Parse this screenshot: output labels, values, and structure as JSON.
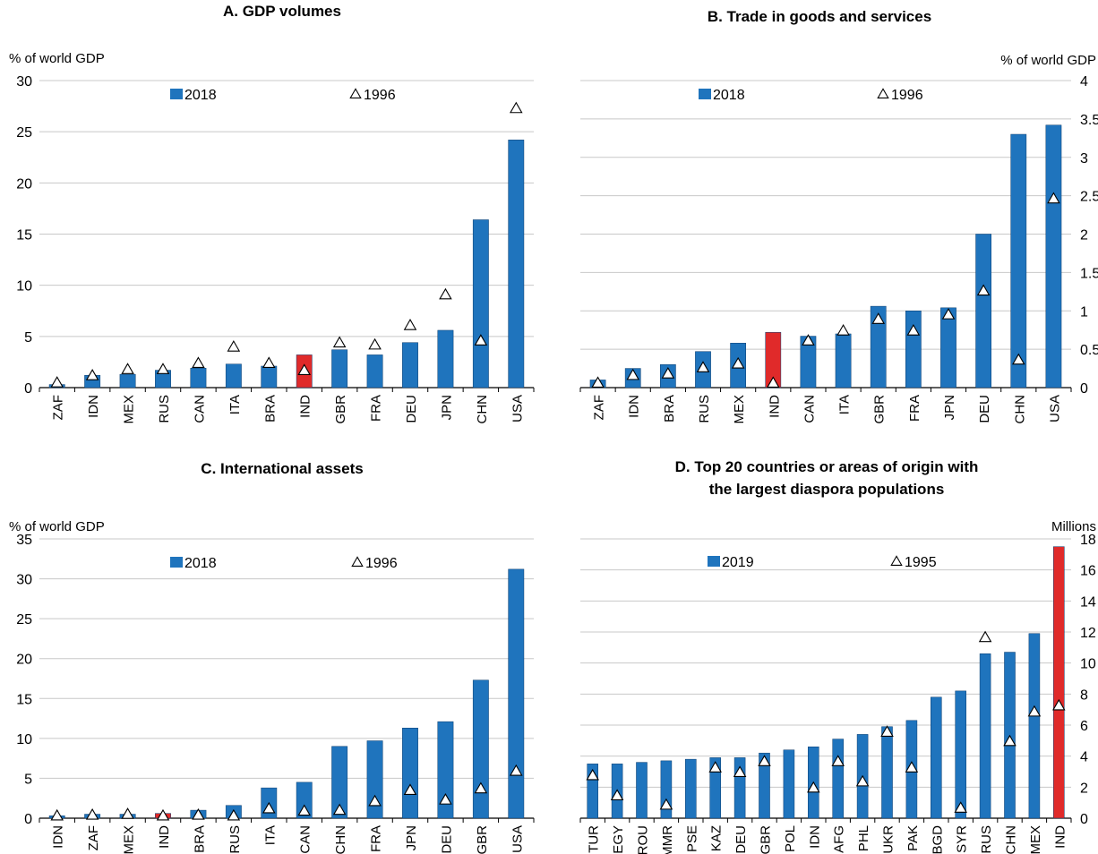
{
  "legend_colors": {
    "bar": "#1f74bd",
    "highlight": "#e02a2a",
    "marker_stroke": "#000000",
    "marker_fill": "#ffffff"
  },
  "chart_data": [
    {
      "id": "A",
      "type": "bar",
      "title": "A. GDP volumes",
      "ylabel": "% of world GDP",
      "yaxis_side": "left",
      "ylim": [
        0,
        30
      ],
      "yticks": [
        "0",
        "5",
        "10",
        "15",
        "20",
        "25",
        "30"
      ],
      "legend": {
        "bar_label": "2018",
        "marker_label": "1996"
      },
      "categories": [
        "ZAF",
        "IDN",
        "MEX",
        "RUS",
        "CAN",
        "ITA",
        "BRA",
        "IND",
        "GBR",
        "FRA",
        "DEU",
        "JPN",
        "CHN",
        "USA"
      ],
      "highlight": [
        "IND"
      ],
      "series": [
        {
          "name": "2018",
          "values": [
            0.3,
            1.2,
            1.3,
            1.7,
            1.9,
            2.3,
            2.1,
            3.2,
            3.7,
            3.2,
            4.4,
            5.6,
            16.4,
            24.2
          ]
        },
        {
          "name": "1996",
          "values": [
            0.4,
            1.1,
            1.7,
            1.7,
            2.3,
            3.9,
            2.3,
            1.6,
            4.3,
            4.1,
            6.0,
            9.0,
            4.5,
            27.2
          ]
        }
      ]
    },
    {
      "id": "B",
      "type": "bar",
      "title": "B. Trade in goods and services",
      "ylabel": "% of world GDP",
      "yaxis_side": "right",
      "ylim": [
        0,
        4
      ],
      "yticks": [
        "0",
        "0.5",
        "1",
        "1.5",
        "2",
        "2.5",
        "3",
        "3.5",
        "4"
      ],
      "legend": {
        "bar_label": "2018",
        "marker_label": "1996"
      },
      "categories": [
        "ZAF",
        "IDN",
        "BRA",
        "RUS",
        "MEX",
        "IND",
        "CAN",
        "ITA",
        "GBR",
        "FRA",
        "JPN",
        "DEU",
        "CHN",
        "USA"
      ],
      "highlight": [
        "IND"
      ],
      "series": [
        {
          "name": "2018",
          "values": [
            0.1,
            0.25,
            0.3,
            0.47,
            0.58,
            0.72,
            0.67,
            0.7,
            1.06,
            1.0,
            1.04,
            2.0,
            3.3,
            3.42
          ]
        },
        {
          "name": "1996",
          "values": [
            0.05,
            0.15,
            0.17,
            0.25,
            0.3,
            0.05,
            0.6,
            0.73,
            0.88,
            0.73,
            0.94,
            1.25,
            0.35,
            2.45
          ]
        }
      ]
    },
    {
      "id": "C",
      "type": "bar",
      "title": "C. International assets",
      "ylabel": "% of world GDP",
      "yaxis_side": "left",
      "ylim": [
        0,
        35
      ],
      "yticks": [
        "0",
        "5",
        "10",
        "15",
        "20",
        "25",
        "30",
        "35"
      ],
      "legend": {
        "bar_label": "2018",
        "marker_label": "1996"
      },
      "categories": [
        "IDN",
        "ZAF",
        "MEX",
        "IND",
        "BRA",
        "RUS",
        "ITA",
        "CAN",
        "CHN",
        "FRA",
        "JPN",
        "DEU",
        "GBR",
        "USA"
      ],
      "highlight": [
        "IND"
      ],
      "series": [
        {
          "name": "2018",
          "values": [
            0.3,
            0.5,
            0.5,
            0.6,
            1.0,
            1.6,
            3.8,
            4.5,
            9.0,
            9.7,
            11.3,
            12.1,
            17.3,
            31.2
          ]
        },
        {
          "name": "1996",
          "values": [
            0.2,
            0.3,
            0.4,
            0.2,
            0.3,
            0.2,
            1.1,
            0.8,
            0.9,
            2.0,
            3.4,
            2.2,
            3.6,
            5.8
          ]
        }
      ]
    },
    {
      "id": "D",
      "type": "bar",
      "title": "D. Top 20 countries or areas of origin with the largest diaspora populations",
      "ylabel": "Millions",
      "yaxis_side": "right",
      "ylim": [
        0,
        18
      ],
      "yticks": [
        "0",
        "2",
        "4",
        "6",
        "8",
        "10",
        "12",
        "14",
        "16",
        "18"
      ],
      "legend": {
        "bar_label": "2019",
        "marker_label": "1995"
      },
      "categories": [
        "TUR",
        "EGY",
        "ROU",
        "MMR",
        "PSE",
        "KAZ",
        "DEU",
        "GBR",
        "POL",
        "IDN",
        "AFG",
        "PHL",
        "UKR",
        "PAK",
        "BGD",
        "SYR",
        "RUS",
        "CHN",
        "MEX",
        "IND"
      ],
      "highlight": [
        "IND"
      ],
      "series": [
        {
          "name": "2019",
          "values": [
            3.5,
            3.5,
            3.6,
            3.7,
            3.8,
            3.9,
            3.9,
            4.2,
            4.4,
            4.6,
            5.1,
            5.4,
            5.9,
            6.3,
            7.8,
            8.2,
            10.6,
            10.7,
            11.9,
            17.5
          ]
        },
        {
          "name": "1995",
          "values": [
            2.7,
            1.4,
            null,
            0.8,
            null,
            3.2,
            2.9,
            3.6,
            null,
            1.9,
            3.6,
            2.3,
            5.5,
            3.2,
            null,
            0.6,
            11.6,
            4.9,
            6.8,
            7.2
          ]
        }
      ]
    }
  ]
}
